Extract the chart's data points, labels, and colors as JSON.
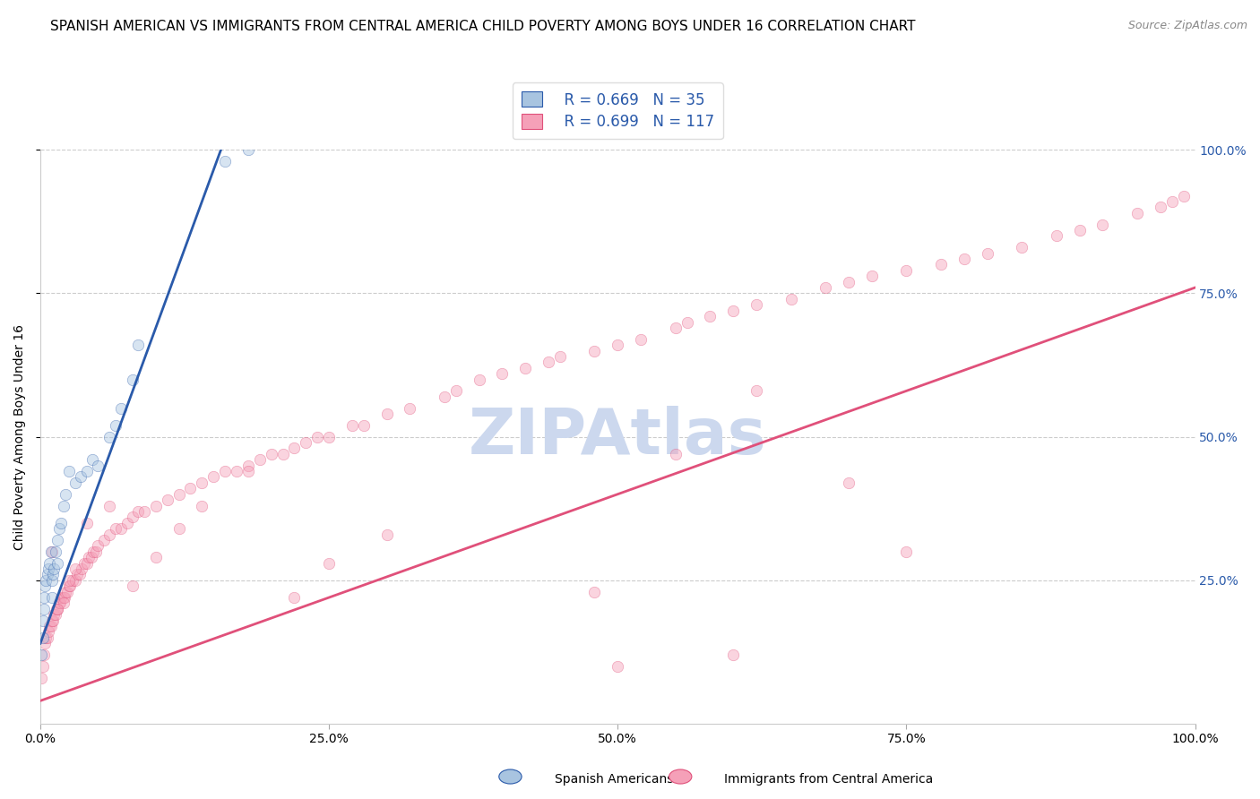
{
  "title": "SPANISH AMERICAN VS IMMIGRANTS FROM CENTRAL AMERICA CHILD POVERTY AMONG BOYS UNDER 16 CORRELATION CHART",
  "source": "Source: ZipAtlas.com",
  "ylabel": "Child Poverty Among Boys Under 16",
  "blue_label": "Spanish Americans",
  "pink_label": "Immigrants from Central America",
  "blue_R": 0.669,
  "blue_N": 35,
  "pink_R": 0.699,
  "pink_N": 117,
  "blue_color": "#a8c4e0",
  "blue_line_color": "#2a5aaa",
  "pink_color": "#f5a0b8",
  "pink_line_color": "#e0507a",
  "legend_text_color": "#2a5aaa",
  "right_tick_color": "#2a5aaa",
  "background_color": "#ffffff",
  "grid_color": "#cccccc",
  "blue_scatter_x": [
    0.001,
    0.002,
    0.002,
    0.003,
    0.003,
    0.004,
    0.005,
    0.006,
    0.007,
    0.008,
    0.009,
    0.01,
    0.01,
    0.011,
    0.012,
    0.013,
    0.015,
    0.015,
    0.016,
    0.018,
    0.02,
    0.022,
    0.025,
    0.03,
    0.035,
    0.04,
    0.045,
    0.05,
    0.06,
    0.065,
    0.07,
    0.08,
    0.085,
    0.16,
    0.18
  ],
  "blue_scatter_y": [
    0.12,
    0.15,
    0.18,
    0.2,
    0.22,
    0.24,
    0.25,
    0.26,
    0.27,
    0.28,
    0.3,
    0.22,
    0.25,
    0.26,
    0.27,
    0.3,
    0.28,
    0.32,
    0.34,
    0.35,
    0.38,
    0.4,
    0.44,
    0.42,
    0.43,
    0.44,
    0.46,
    0.45,
    0.5,
    0.52,
    0.55,
    0.6,
    0.66,
    0.98,
    1.0
  ],
  "pink_scatter_x": [
    0.001,
    0.002,
    0.003,
    0.004,
    0.005,
    0.006,
    0.007,
    0.008,
    0.009,
    0.01,
    0.011,
    0.012,
    0.013,
    0.014,
    0.015,
    0.016,
    0.017,
    0.018,
    0.02,
    0.021,
    0.022,
    0.023,
    0.025,
    0.026,
    0.028,
    0.03,
    0.032,
    0.034,
    0.036,
    0.038,
    0.04,
    0.042,
    0.044,
    0.046,
    0.048,
    0.05,
    0.055,
    0.06,
    0.065,
    0.07,
    0.075,
    0.08,
    0.085,
    0.09,
    0.1,
    0.11,
    0.12,
    0.13,
    0.14,
    0.15,
    0.16,
    0.17,
    0.18,
    0.19,
    0.2,
    0.21,
    0.22,
    0.23,
    0.24,
    0.25,
    0.27,
    0.28,
    0.3,
    0.32,
    0.35,
    0.36,
    0.38,
    0.4,
    0.42,
    0.44,
    0.45,
    0.48,
    0.5,
    0.52,
    0.55,
    0.56,
    0.58,
    0.6,
    0.62,
    0.65,
    0.68,
    0.7,
    0.72,
    0.75,
    0.78,
    0.8,
    0.82,
    0.85,
    0.88,
    0.9,
    0.92,
    0.95,
    0.97,
    0.98,
    0.99,
    0.62,
    0.7,
    0.75,
    0.55,
    0.48,
    0.3,
    0.25,
    0.22,
    0.18,
    0.14,
    0.12,
    0.1,
    0.08,
    0.06,
    0.04,
    0.03,
    0.025,
    0.02,
    0.015,
    0.01,
    0.5,
    0.6
  ],
  "pink_scatter_y": [
    0.08,
    0.1,
    0.12,
    0.14,
    0.15,
    0.15,
    0.16,
    0.17,
    0.17,
    0.18,
    0.18,
    0.19,
    0.19,
    0.2,
    0.2,
    0.21,
    0.21,
    0.22,
    0.22,
    0.22,
    0.23,
    0.23,
    0.24,
    0.24,
    0.25,
    0.25,
    0.26,
    0.26,
    0.27,
    0.28,
    0.28,
    0.29,
    0.29,
    0.3,
    0.3,
    0.31,
    0.32,
    0.33,
    0.34,
    0.34,
    0.35,
    0.36,
    0.37,
    0.37,
    0.38,
    0.39,
    0.4,
    0.41,
    0.42,
    0.43,
    0.44,
    0.44,
    0.45,
    0.46,
    0.47,
    0.47,
    0.48,
    0.49,
    0.5,
    0.5,
    0.52,
    0.52,
    0.54,
    0.55,
    0.57,
    0.58,
    0.6,
    0.61,
    0.62,
    0.63,
    0.64,
    0.65,
    0.66,
    0.67,
    0.69,
    0.7,
    0.71,
    0.72,
    0.73,
    0.74,
    0.76,
    0.77,
    0.78,
    0.79,
    0.8,
    0.81,
    0.82,
    0.83,
    0.85,
    0.86,
    0.87,
    0.89,
    0.9,
    0.91,
    0.92,
    0.58,
    0.42,
    0.3,
    0.47,
    0.23,
    0.33,
    0.28,
    0.22,
    0.44,
    0.38,
    0.34,
    0.29,
    0.24,
    0.38,
    0.35,
    0.27,
    0.25,
    0.21,
    0.2,
    0.3,
    0.1,
    0.12
  ],
  "xlim": [
    0.0,
    1.0
  ],
  "ylim": [
    0.0,
    1.0
  ],
  "xticks": [
    0.0,
    0.25,
    0.5,
    0.75,
    1.0
  ],
  "xticklabels": [
    "0.0%",
    "25.0%",
    "50.0%",
    "75.0%",
    "100.0%"
  ],
  "yticks_right": [
    0.0,
    0.25,
    0.5,
    0.75,
    1.0
  ],
  "yticklabels_right": [
    "",
    "25.0%",
    "50.0%",
    "75.0%",
    "100.0%"
  ],
  "marker_size": 80,
  "marker_alpha": 0.45,
  "title_fontsize": 11,
  "axis_label_fontsize": 10,
  "tick_fontsize": 10,
  "legend_fontsize": 12,
  "watermark_fontsize": 52,
  "watermark_color": "#ccd8ee",
  "blue_line_x0": 0.0,
  "blue_line_x1": 0.185,
  "blue_line_slope": 5.5,
  "blue_line_intercept": 0.14,
  "pink_line_x0": 0.0,
  "pink_line_x1": 1.0,
  "pink_line_slope": 0.72,
  "pink_line_intercept": 0.04
}
